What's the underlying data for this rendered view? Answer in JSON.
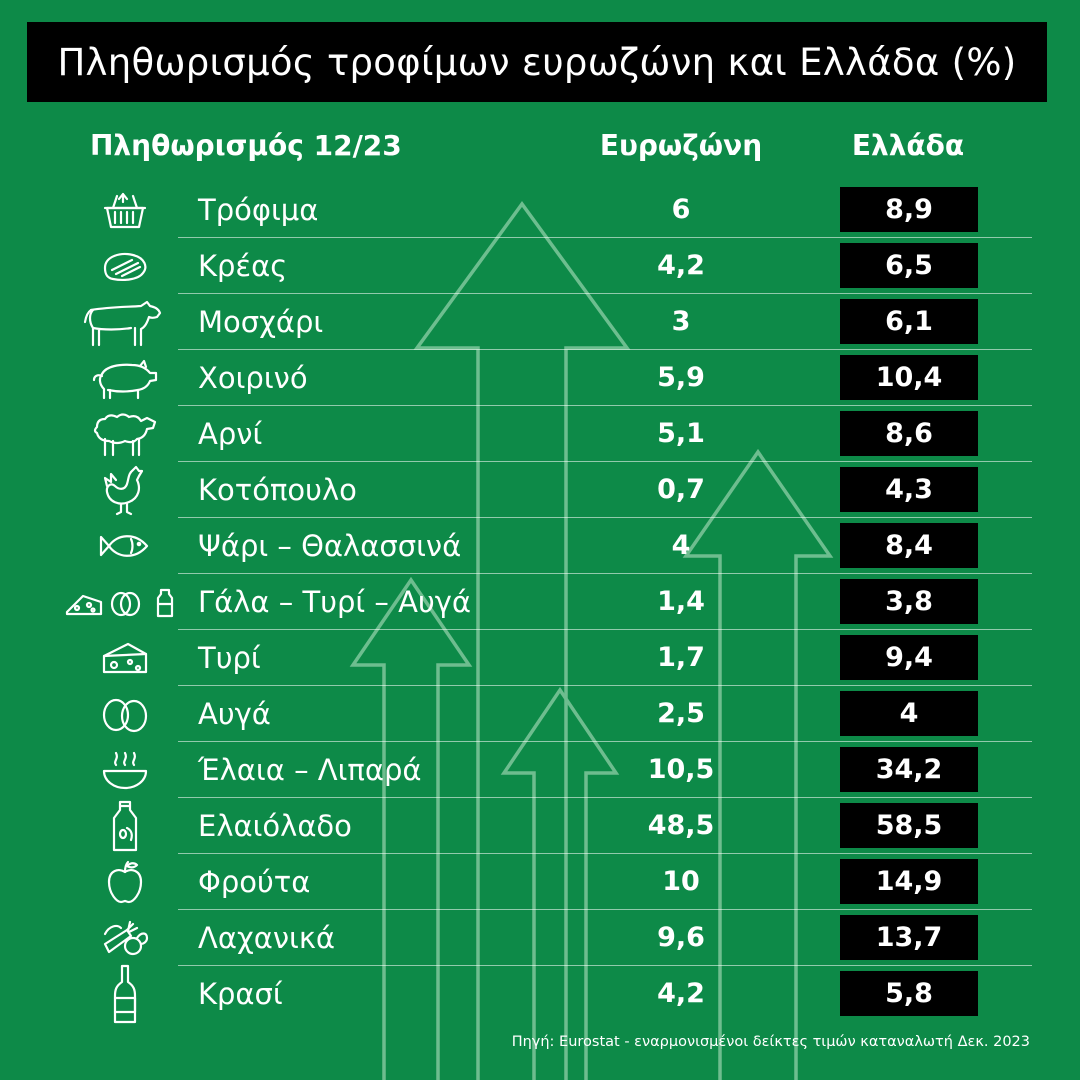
{
  "title": "Πληθωρισμός τροφίμων ευρωζώνη και Ελλάδα (%)",
  "headers": {
    "label": "Πληθωρισμός 12/23",
    "eurozone": "Ευρωζώνη",
    "greece": "Ελλάδα"
  },
  "rows": [
    {
      "label": "Τρόφιμα",
      "eurozone": "6",
      "greece": "8,9",
      "icon": "basket-icon"
    },
    {
      "label": "Κρέας",
      "eurozone": "4,2",
      "greece": "6,5",
      "icon": "steak-icon"
    },
    {
      "label": "Μοσχάρι",
      "eurozone": "3",
      "greece": "6,1",
      "icon": "cow-icon"
    },
    {
      "label": "Χοιρινό",
      "eurozone": "5,9",
      "greece": "10,4",
      "icon": "pig-icon"
    },
    {
      "label": "Αρνί",
      "eurozone": "5,1",
      "greece": "8,6",
      "icon": "sheep-icon"
    },
    {
      "label": "Κοτόπουλο",
      "eurozone": "0,7",
      "greece": "4,3",
      "icon": "chicken-icon"
    },
    {
      "label": "Ψάρι – Θαλασσινά",
      "eurozone": "4",
      "greece": "8,4",
      "icon": "fish-icon"
    },
    {
      "label": "Γάλα – Τυρί – Αυγά",
      "eurozone": "1,4",
      "greece": "3,8",
      "icon": "dairy-icon"
    },
    {
      "label": "Τυρί",
      "eurozone": "1,7",
      "greece": "9,4",
      "icon": "cheese-icon"
    },
    {
      "label": "Αυγά",
      "eurozone": "2,5",
      "greece": "4",
      "icon": "eggs-icon"
    },
    {
      "label": "Έλαια – Λιπαρά",
      "eurozone": "10,5",
      "greece": "34,2",
      "icon": "bowl-icon"
    },
    {
      "label": "Ελαιόλαδο",
      "eurozone": "48,5",
      "greece": "58,5",
      "icon": "olive-oil-icon"
    },
    {
      "label": "Φρούτα",
      "eurozone": "10",
      "greece": "14,9",
      "icon": "apple-icon"
    },
    {
      "label": "Λαχανικά",
      "eurozone": "9,6",
      "greece": "13,7",
      "icon": "vegetables-icon"
    },
    {
      "label": "Κρασί",
      "eurozone": "4,2",
      "greece": "5,8",
      "icon": "wine-bottle-icon"
    }
  ],
  "source": "Πηγή: Eurostat - εναρμονισμένοι δείκτες τιμών καταναλωτή Δεκ. 2023",
  "colors": {
    "background": "#0d8a48",
    "title_bar": "#000000",
    "value_box": "#000000",
    "text": "#ffffff"
  },
  "chart_data": {
    "type": "table",
    "title": "Πληθωρισμός τροφίμων ευρωζώνη και Ελλάδα (%)",
    "columns": [
      "Πληθωρισμός 12/23",
      "Ευρωζώνη",
      "Ελλάδα"
    ],
    "categories": [
      "Τρόφιμα",
      "Κρέας",
      "Μοσχάρι",
      "Χοιρινό",
      "Αρνί",
      "Κοτόπουλο",
      "Ψάρι – Θαλασσινά",
      "Γάλα – Τυρί – Αυγά",
      "Τυρί",
      "Αυγά",
      "Έλαια – Λιπαρά",
      "Ελαιόλαδο",
      "Φρούτα",
      "Λαχανικά",
      "Κρασί"
    ],
    "series": [
      {
        "name": "Ευρωζώνη",
        "values": [
          6,
          4.2,
          3,
          5.9,
          5.1,
          0.7,
          4,
          1.4,
          1.7,
          2.5,
          10.5,
          48.5,
          10,
          9.6,
          4.2
        ]
      },
      {
        "name": "Ελλάδα",
        "values": [
          8.9,
          6.5,
          6.1,
          10.4,
          8.6,
          4.3,
          8.4,
          3.8,
          9.4,
          4,
          34.2,
          58.5,
          14.9,
          13.7,
          5.8
        ]
      }
    ]
  }
}
